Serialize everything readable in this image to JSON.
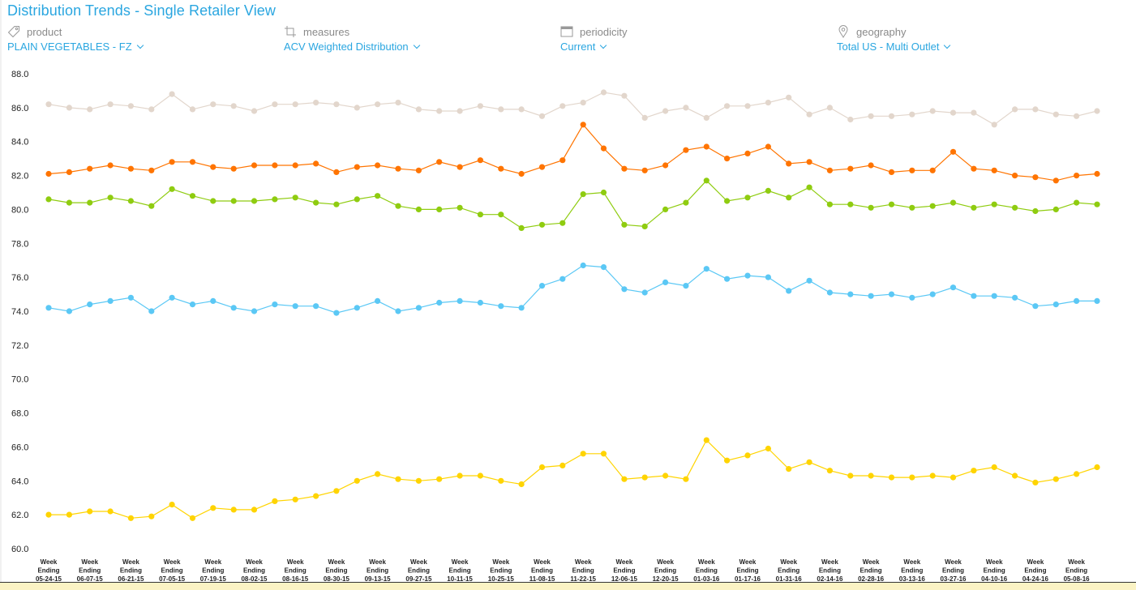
{
  "header": {
    "title": "Distribution Trends - Single Retailer View"
  },
  "filters": [
    {
      "icon": "tag-icon",
      "label": "product",
      "value": "PLAIN VEGETABLES - FZ"
    },
    {
      "icon": "crop-icon",
      "label": "measures",
      "value": "ACV Weighted Distribution"
    },
    {
      "icon": "calendar-icon",
      "label": "periodicity",
      "value": "Current"
    },
    {
      "icon": "map-pin-icon",
      "label": "geography",
      "value": "Total US - Multi Outlet"
    }
  ],
  "chart_data": {
    "type": "line",
    "title": "Distribution Trends - Single Retailer View",
    "xlabel": "",
    "ylabel": "ACV Weighted Distribution",
    "ylim": [
      60,
      88
    ],
    "yticks": [
      "88.0",
      "86.0",
      "84.0",
      "82.0",
      "80.0",
      "78.0",
      "76.0",
      "74.0",
      "72.0",
      "70.0",
      "68.0",
      "66.0",
      "64.0",
      "62.0",
      "60.0"
    ],
    "grid": false,
    "legend": "none",
    "x_count": 52,
    "x_labels": [
      [
        "Week",
        "Ending",
        "05-24-15"
      ],
      [
        "Week",
        "Ending",
        "06-07-15"
      ],
      [
        "Week",
        "Ending",
        "06-21-15"
      ],
      [
        "Week",
        "Ending",
        "07-05-15"
      ],
      [
        "Week",
        "Ending",
        "07-19-15"
      ],
      [
        "Week",
        "Ending",
        "08-02-15"
      ],
      [
        "Week",
        "Ending",
        "08-16-15"
      ],
      [
        "Week",
        "Ending",
        "08-30-15"
      ],
      [
        "Week",
        "Ending",
        "09-13-15"
      ],
      [
        "Week",
        "Ending",
        "09-27-15"
      ],
      [
        "Week",
        "Ending",
        "10-11-15"
      ],
      [
        "Week",
        "Ending",
        "10-25-15"
      ],
      [
        "Week",
        "Ending",
        "11-08-15"
      ],
      [
        "Week",
        "Ending",
        "11-22-15"
      ],
      [
        "Week",
        "Ending",
        "12-06-15"
      ],
      [
        "Week",
        "Ending",
        "12-20-15"
      ],
      [
        "Week",
        "Ending",
        "01-03-16"
      ],
      [
        "Week",
        "Ending",
        "01-17-16"
      ],
      [
        "Week",
        "Ending",
        "01-31-16"
      ],
      [
        "Week",
        "Ending",
        "02-14-16"
      ],
      [
        "Week",
        "Ending",
        "02-28-16"
      ],
      [
        "Week",
        "Ending",
        "03-13-16"
      ],
      [
        "Week",
        "Ending",
        "03-27-16"
      ],
      [
        "Week",
        "Ending",
        "04-10-16"
      ],
      [
        "Week",
        "Ending",
        "04-24-16"
      ],
      [
        "Week",
        "Ending",
        "05-08-16"
      ]
    ],
    "x_label_every": 2,
    "series": [
      {
        "name": "series-beige",
        "color": "#e2d6cc",
        "values": [
          86.2,
          86.0,
          85.9,
          86.2,
          86.1,
          85.9,
          86.8,
          85.9,
          86.2,
          86.1,
          85.8,
          86.2,
          86.2,
          86.3,
          86.2,
          86.0,
          86.2,
          86.3,
          85.9,
          85.8,
          85.8,
          86.1,
          85.9,
          85.9,
          85.5,
          86.1,
          86.3,
          86.9,
          86.7,
          85.4,
          85.8,
          86.0,
          85.4,
          86.1,
          86.1,
          86.3,
          86.6,
          85.6,
          86.0,
          85.3,
          85.5,
          85.5,
          85.6,
          85.8,
          85.7,
          85.7,
          85.0,
          85.9,
          85.9,
          85.6,
          85.5,
          85.8
        ]
      },
      {
        "name": "series-orange",
        "color": "#ff7400",
        "values": [
          82.1,
          82.2,
          82.4,
          82.6,
          82.4,
          82.3,
          82.8,
          82.8,
          82.5,
          82.4,
          82.6,
          82.6,
          82.6,
          82.7,
          82.2,
          82.5,
          82.6,
          82.4,
          82.3,
          82.8,
          82.5,
          82.9,
          82.4,
          82.1,
          82.5,
          82.9,
          85.0,
          83.6,
          82.4,
          82.3,
          82.6,
          83.5,
          83.7,
          83.0,
          83.3,
          83.7,
          82.7,
          82.8,
          82.3,
          82.4,
          82.6,
          82.2,
          82.3,
          82.3,
          83.4,
          82.4,
          82.3,
          82.0,
          81.9,
          81.7,
          82.0,
          82.1
        ]
      },
      {
        "name": "series-green",
        "color": "#8fcc10",
        "values": [
          80.6,
          80.4,
          80.4,
          80.7,
          80.5,
          80.2,
          81.2,
          80.8,
          80.5,
          80.5,
          80.5,
          80.6,
          80.7,
          80.4,
          80.3,
          80.6,
          80.8,
          80.2,
          80.0,
          80.0,
          80.1,
          79.7,
          79.7,
          78.9,
          79.1,
          79.2,
          80.9,
          81.0,
          79.1,
          79.0,
          80.0,
          80.4,
          81.7,
          80.5,
          80.7,
          81.1,
          80.7,
          81.3,
          80.3,
          80.3,
          80.1,
          80.3,
          80.1,
          80.2,
          80.4,
          80.1,
          80.3,
          80.1,
          79.9,
          80.0,
          80.4,
          80.3
        ]
      },
      {
        "name": "series-blue",
        "color": "#5bc8f5",
        "values": [
          74.2,
          74.0,
          74.4,
          74.6,
          74.8,
          74.0,
          74.8,
          74.4,
          74.6,
          74.2,
          74.0,
          74.4,
          74.3,
          74.3,
          73.9,
          74.2,
          74.6,
          74.0,
          74.2,
          74.5,
          74.6,
          74.5,
          74.3,
          74.2,
          75.5,
          75.9,
          76.7,
          76.6,
          75.3,
          75.1,
          75.7,
          75.5,
          76.5,
          75.9,
          76.1,
          76.0,
          75.2,
          75.8,
          75.1,
          75.0,
          74.9,
          75.0,
          74.8,
          75.0,
          75.4,
          74.9,
          74.9,
          74.8,
          74.3,
          74.4,
          74.6,
          74.6
        ]
      },
      {
        "name": "series-yellow",
        "color": "#ffd400",
        "values": [
          62.0,
          62.0,
          62.2,
          62.2,
          61.8,
          61.9,
          62.6,
          61.8,
          62.4,
          62.3,
          62.3,
          62.8,
          62.9,
          63.1,
          63.4,
          64.0,
          64.4,
          64.1,
          64.0,
          64.1,
          64.3,
          64.3,
          64.0,
          63.8,
          64.8,
          64.9,
          65.6,
          65.6,
          64.1,
          64.2,
          64.3,
          64.1,
          66.4,
          65.2,
          65.5,
          65.9,
          64.7,
          65.1,
          64.6,
          64.3,
          64.3,
          64.2,
          64.2,
          64.3,
          64.2,
          64.6,
          64.8,
          64.3,
          63.9,
          64.1,
          64.4,
          64.8
        ]
      }
    ]
  }
}
